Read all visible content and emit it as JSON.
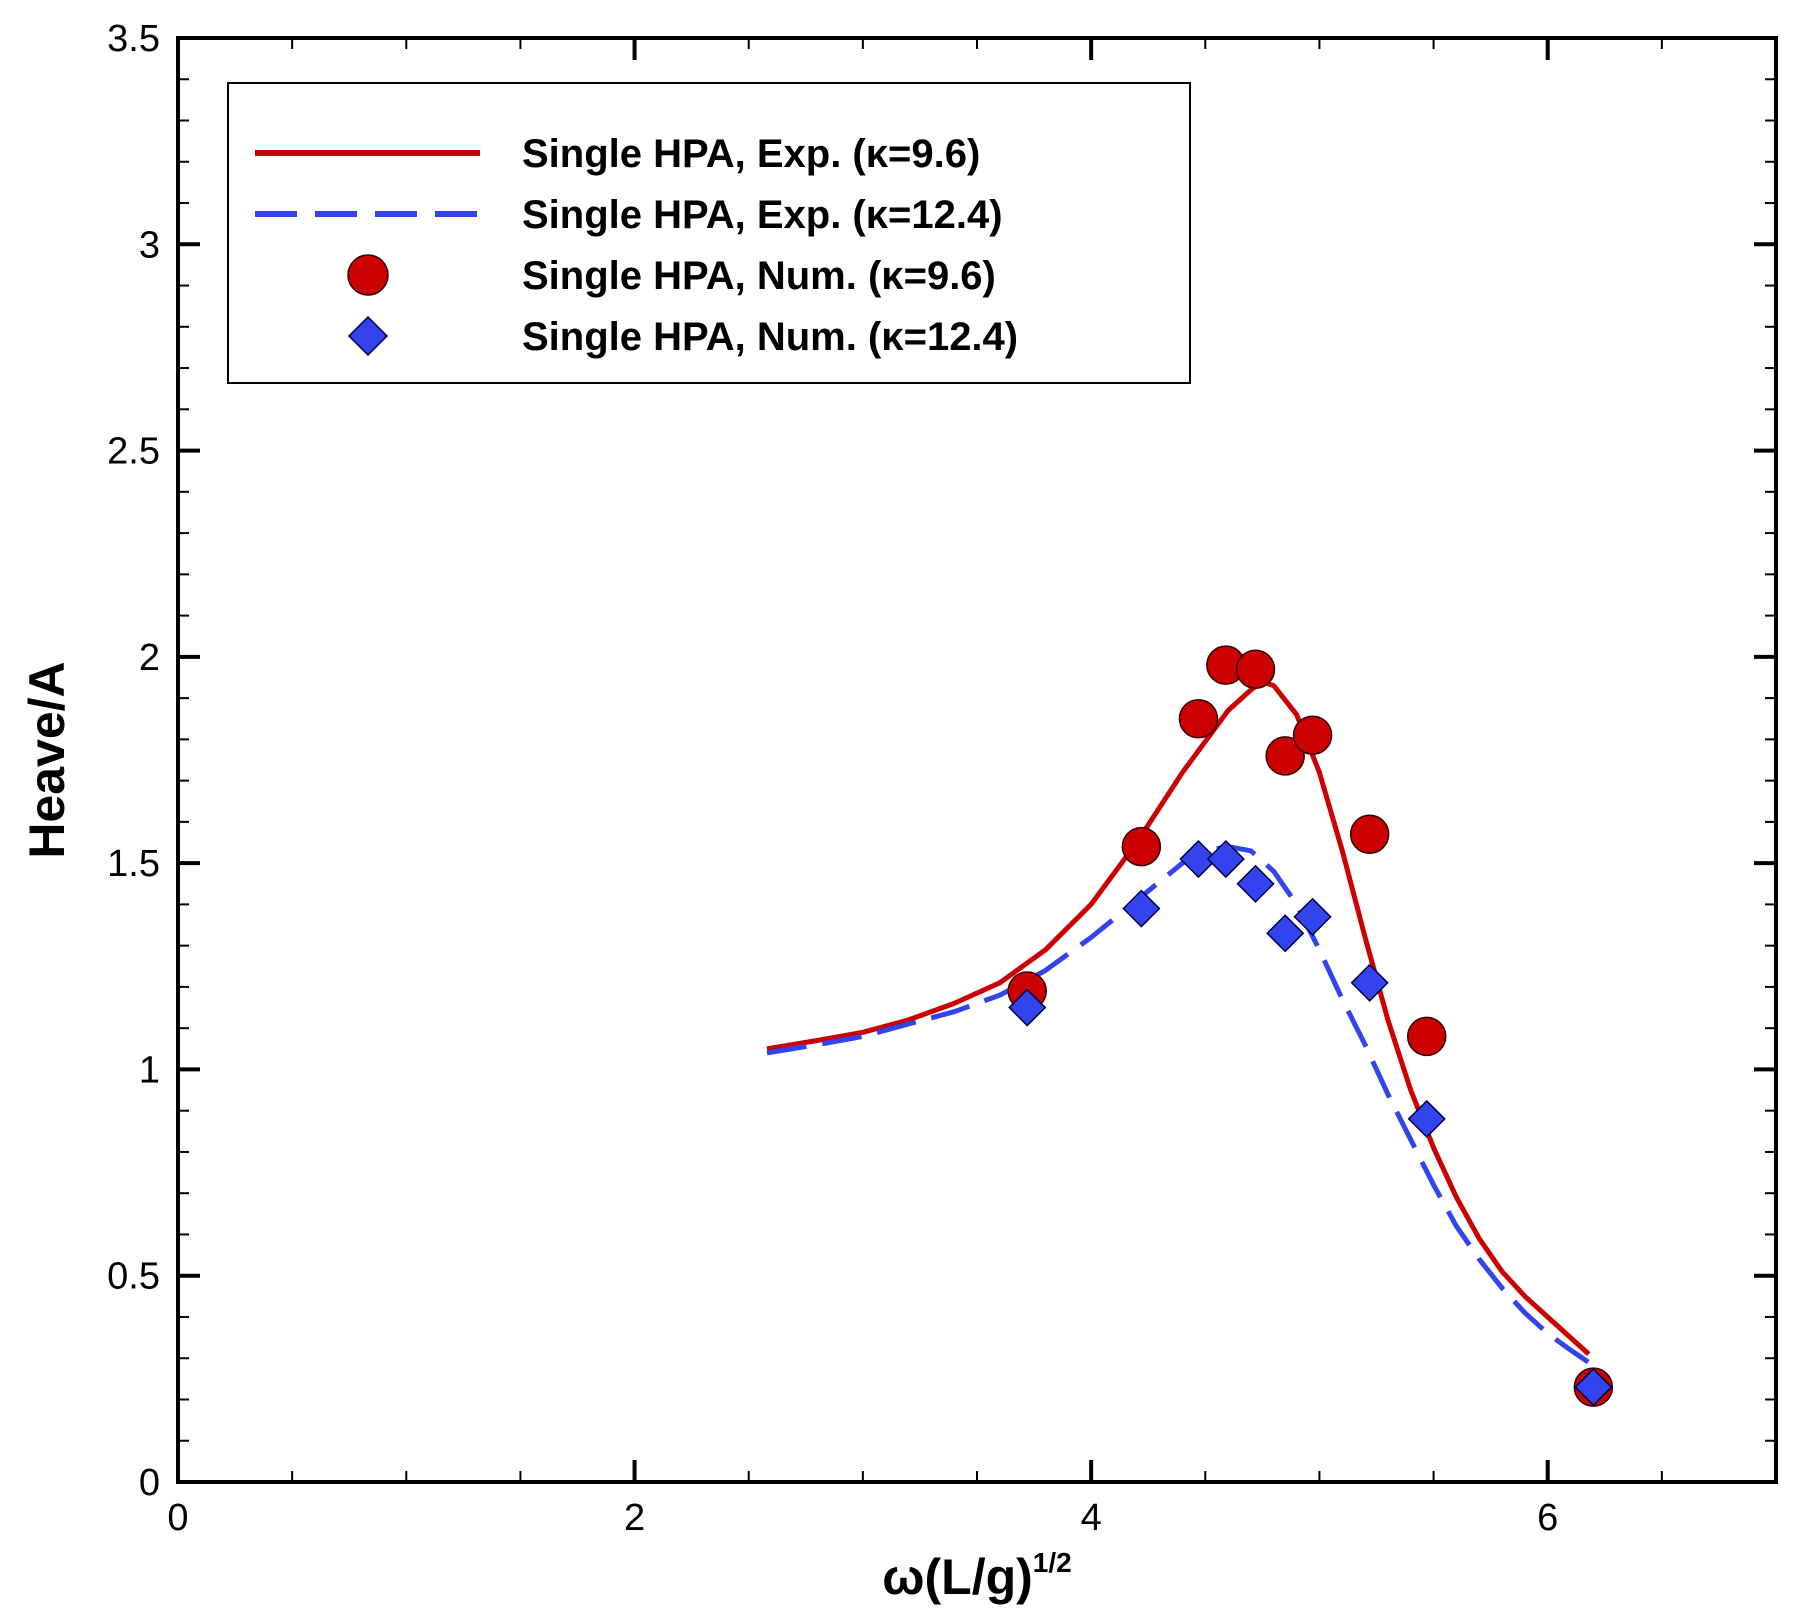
{
  "chart_data": {
    "type": "line",
    "title": "",
    "xlabel_main": "ω(L/g)",
    "xlabel_sup": "1/2",
    "ylabel": "Heave/A",
    "xlim": [
      0,
      7
    ],
    "ylim": [
      0,
      3.5
    ],
    "x_major_ticks": [
      0,
      2,
      4,
      6
    ],
    "x_tick_labels": [
      "0",
      "2",
      "4",
      "6"
    ],
    "x_minor_step": 0.5,
    "y_major_ticks": [
      0,
      0.5,
      1,
      1.5,
      2,
      2.5,
      3,
      3.5
    ],
    "y_tick_labels": [
      "0",
      "0.5",
      "1",
      "1.5",
      "2",
      "2.5",
      "3",
      "3.5"
    ],
    "y_minor_step": 0.1,
    "grid": false,
    "legend_position": "top-left",
    "colors": {
      "red": "#cc0000",
      "blue": "#3344ee"
    },
    "series": [
      {
        "name": "Single HPA, Exp. (κ=9.6)",
        "style": "solid-line",
        "color": "#cc0000",
        "x": [
          2.58,
          2.8,
          3.0,
          3.2,
          3.4,
          3.6,
          3.8,
          4.0,
          4.2,
          4.4,
          4.6,
          4.7,
          4.75,
          4.8,
          4.9,
          5.0,
          5.1,
          5.2,
          5.3,
          5.4,
          5.5,
          5.6,
          5.7,
          5.8,
          5.9,
          6.0,
          6.1,
          6.18
        ],
        "y": [
          1.05,
          1.07,
          1.09,
          1.12,
          1.16,
          1.21,
          1.29,
          1.4,
          1.55,
          1.72,
          1.87,
          1.92,
          1.94,
          1.93,
          1.86,
          1.72,
          1.53,
          1.32,
          1.12,
          0.95,
          0.81,
          0.69,
          0.59,
          0.51,
          0.45,
          0.4,
          0.35,
          0.31
        ]
      },
      {
        "name": "Single HPA, Exp. (κ=12.4)",
        "style": "dashed-line",
        "color": "#3344ee",
        "x": [
          2.58,
          2.8,
          3.0,
          3.2,
          3.4,
          3.6,
          3.8,
          4.0,
          4.2,
          4.4,
          4.5,
          4.6,
          4.7,
          4.8,
          4.9,
          5.0,
          5.1,
          5.2,
          5.3,
          5.4,
          5.5,
          5.6,
          5.7,
          5.8,
          5.9,
          6.0,
          6.1,
          6.18
        ],
        "y": [
          1.04,
          1.06,
          1.08,
          1.11,
          1.14,
          1.18,
          1.24,
          1.32,
          1.41,
          1.5,
          1.53,
          1.54,
          1.53,
          1.48,
          1.4,
          1.29,
          1.17,
          1.06,
          0.94,
          0.83,
          0.72,
          0.62,
          0.54,
          0.47,
          0.41,
          0.36,
          0.32,
          0.29
        ]
      },
      {
        "name": "Single HPA, Num. (κ=9.6)",
        "style": "circle-marker",
        "color": "#cc0000",
        "x": [
          3.72,
          4.22,
          4.47,
          4.59,
          4.72,
          4.85,
          4.97,
          5.22,
          5.47,
          6.2
        ],
        "y": [
          1.19,
          1.54,
          1.85,
          1.98,
          1.97,
          1.76,
          1.81,
          1.57,
          1.08,
          0.23
        ]
      },
      {
        "name": "Single HPA, Num. (κ=12.4)",
        "style": "diamond-marker",
        "color": "#3344ee",
        "x": [
          3.72,
          4.22,
          4.47,
          4.59,
          4.72,
          4.85,
          4.97,
          5.22,
          5.47,
          6.2
        ],
        "y": [
          1.15,
          1.39,
          1.51,
          1.51,
          1.45,
          1.33,
          1.37,
          1.21,
          0.88,
          0.23
        ]
      }
    ]
  }
}
